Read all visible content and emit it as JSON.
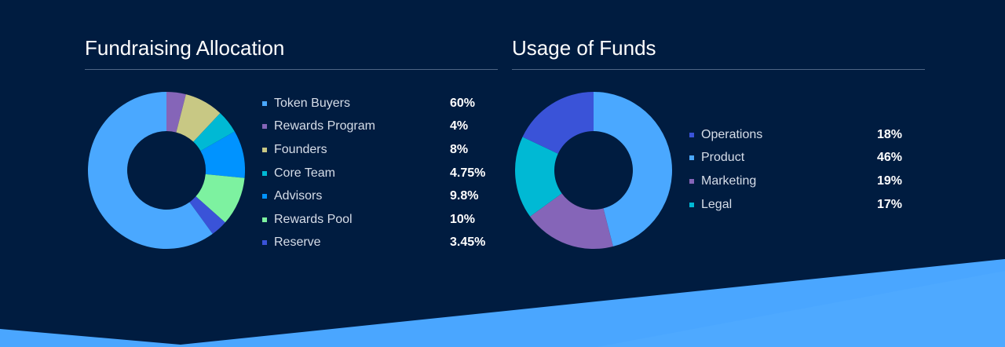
{
  "colors": {
    "background": "#001c40",
    "wave": "#4aa6ff",
    "wave_dark": "#3f9bf6"
  },
  "chart_data": [
    {
      "type": "pie",
      "title": "Fundraising Allocation",
      "categories": [
        "Token Buyers",
        "Rewards Program",
        "Founders",
        "Core Team",
        "Advisors",
        "Rewards Pool",
        "Reserve"
      ],
      "labels": [
        "60%",
        "4%",
        "8%",
        "4.75%",
        "9.8%",
        "10%",
        "3.45%"
      ],
      "values": [
        60,
        4,
        8,
        4.75,
        9.8,
        10,
        3.45
      ],
      "slice_values": [
        4,
        8,
        4.75,
        9.8,
        10,
        3.45,
        60
      ],
      "slice_colors": [
        "#8565b8",
        "#c8c884",
        "#00b9d4",
        "#0093ff",
        "#7df2a0",
        "#3a53d8",
        "#4aa8ff"
      ],
      "colors": [
        "#4aa8ff",
        "#8565b8",
        "#c8c884",
        "#00b9d4",
        "#0093ff",
        "#7df2a0",
        "#3a53d8"
      ],
      "legend": "right",
      "donut": true
    },
    {
      "type": "pie",
      "title": "Usage of Funds",
      "categories": [
        "Operations",
        "Product",
        "Marketing",
        "Legal"
      ],
      "labels": [
        "18%",
        "46%",
        "19%",
        "17%"
      ],
      "values": [
        18,
        46,
        19,
        17
      ],
      "slice_values": [
        46,
        19,
        17,
        18
      ],
      "slice_colors": [
        "#4aa8ff",
        "#8565b8",
        "#00b9d4",
        "#3a53d8"
      ],
      "colors": [
        "#3a53d8",
        "#4aa8ff",
        "#8565b8",
        "#00b9d4"
      ],
      "legend": "right",
      "donut": true
    }
  ]
}
